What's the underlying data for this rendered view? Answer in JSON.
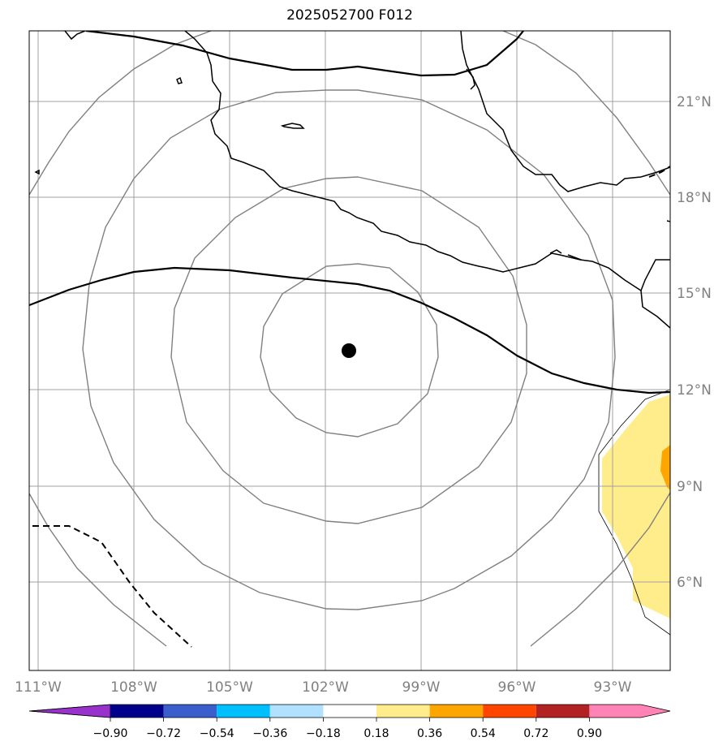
{
  "title": "2025052700 F012",
  "lon_labels": [
    "111°W",
    "108°W",
    "105°W",
    "102°W",
    "99°W",
    "96°W",
    "93°W"
  ],
  "lat_labels": [
    "21°N",
    "18°N",
    "15°N",
    "12°N",
    "9°N",
    "6°N"
  ],
  "colorbar": {
    "ticks": [
      "−0.90",
      "−0.72",
      "−0.54",
      "−0.36",
      "−0.18",
      "0.18",
      "0.36",
      "0.54",
      "0.72",
      "0.90"
    ],
    "colors": [
      "#9932cc",
      "#00008b",
      "#3a5fcd",
      "#00bfff",
      "#b0e2ff",
      "#ffffff",
      "#ffec8b",
      "#ffa500",
      "#ff4500",
      "#b22222",
      "#ff83b4"
    ]
  },
  "storm_center": {
    "lon": -101.3,
    "lat": 13.2
  },
  "colors": {
    "grid": "#a0a0a0",
    "range_rings": "#808080",
    "coast": "#000000",
    "shade_light": "#ffec8b",
    "shade_dark": "#ffa500"
  }
}
